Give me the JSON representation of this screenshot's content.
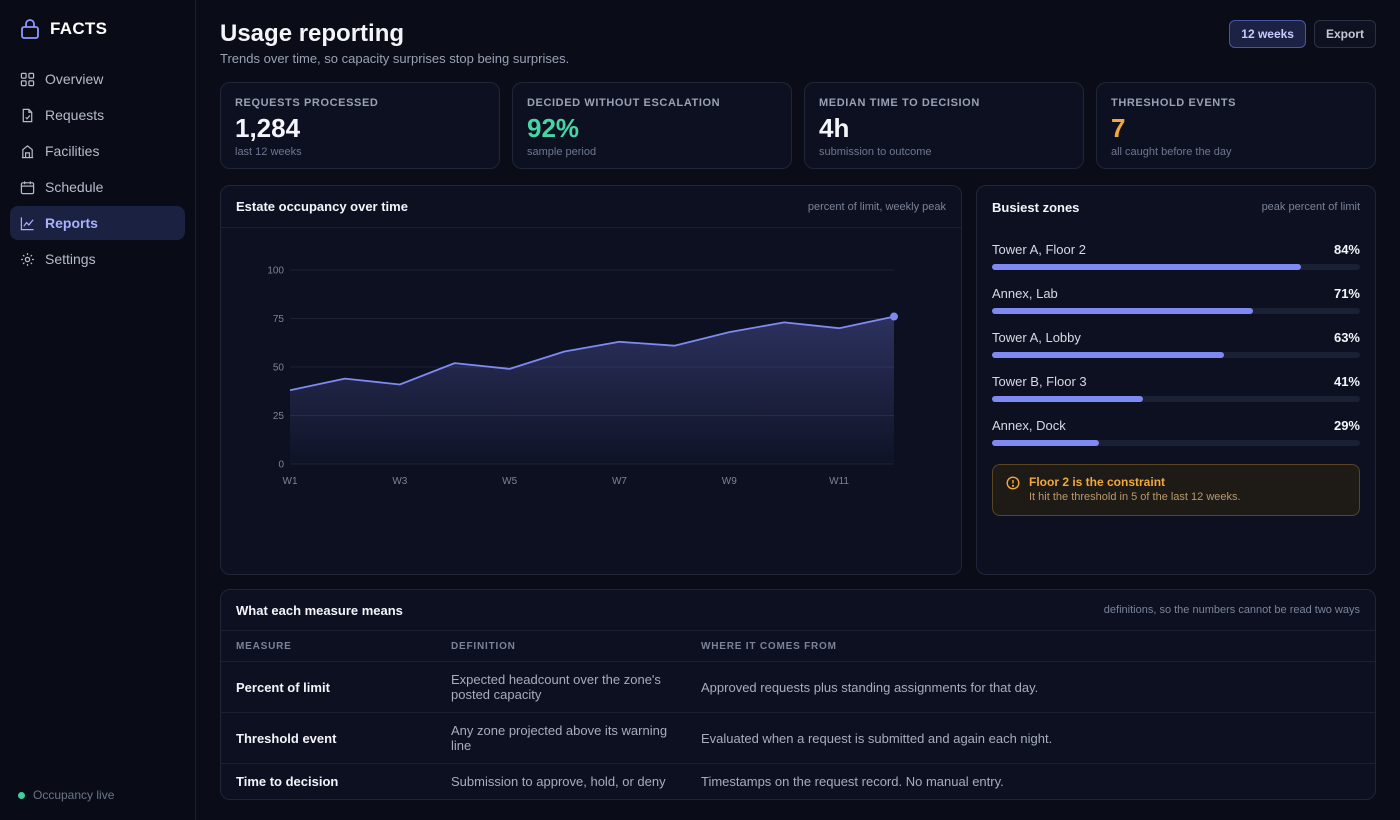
{
  "brand": {
    "name": "FACTS"
  },
  "sidebar": {
    "items": [
      {
        "label": "Overview",
        "icon": "grid-icon"
      },
      {
        "label": "Requests",
        "icon": "document-icon"
      },
      {
        "label": "Facilities",
        "icon": "building-icon"
      },
      {
        "label": "Schedule",
        "icon": "calendar-icon"
      },
      {
        "label": "Reports",
        "icon": "chart-line-icon",
        "active": true
      },
      {
        "label": "Settings",
        "icon": "gear-icon"
      }
    ],
    "status": "Occupancy live"
  },
  "header": {
    "title": "Usage reporting",
    "subtitle": "Trends over time, so capacity surprises stop being surprises.",
    "range_button": "12 weeks",
    "export_button": "Export"
  },
  "stats": [
    {
      "label": "REQUESTS PROCESSED",
      "value": "1,284",
      "note": "last 12 weeks",
      "tone": "default"
    },
    {
      "label": "DECIDED WITHOUT ESCALATION",
      "value": "92%",
      "note": "sample period",
      "tone": "green"
    },
    {
      "label": "MEDIAN TIME TO DECISION",
      "value": "4h",
      "note": "submission to outcome",
      "tone": "default"
    },
    {
      "label": "THRESHOLD EVENTS",
      "value": "7",
      "note": "all caught before the day",
      "tone": "amber"
    }
  ],
  "chart_card": {
    "title": "Estate occupancy over time",
    "hint": "percent of limit, weekly peak"
  },
  "chart_data": {
    "type": "area",
    "x": [
      "W1",
      "W2",
      "W3",
      "W4",
      "W5",
      "W6",
      "W7",
      "W8",
      "W9",
      "W10",
      "W11",
      "W12"
    ],
    "x_tick_labels": [
      "W1",
      "W3",
      "W5",
      "W7",
      "W9",
      "W11"
    ],
    "values": [
      38,
      44,
      41,
      52,
      49,
      58,
      63,
      61,
      68,
      73,
      70,
      76
    ],
    "ylim": [
      0,
      100
    ],
    "y_ticks": [
      0,
      25,
      50,
      75,
      100
    ],
    "grid": true,
    "color": "#7f89f2"
  },
  "zones_card": {
    "title": "Busiest zones",
    "hint": "peak percent of limit",
    "zones": [
      {
        "name": "Tower A, Floor 2",
        "pct_label": "84%",
        "value": 84
      },
      {
        "name": "Annex, Lab",
        "pct_label": "71%",
        "value": 71
      },
      {
        "name": "Tower A, Lobby",
        "pct_label": "63%",
        "value": 63
      },
      {
        "name": "Tower B, Floor 3",
        "pct_label": "41%",
        "value": 41
      },
      {
        "name": "Annex, Dock",
        "pct_label": "29%",
        "value": 29
      }
    ],
    "alert": {
      "title": "Floor 2 is the constraint",
      "body": "It hit the threshold in 5 of the last 12 weeks."
    }
  },
  "defs_card": {
    "title": "What each measure means",
    "hint": "definitions, so the numbers cannot be read two ways",
    "columns": [
      "MEASURE",
      "DEFINITION",
      "WHERE IT COMES FROM"
    ],
    "rows": [
      {
        "measure": "Percent of limit",
        "definition": "Expected headcount over the zone's posted capacity",
        "source": "Approved requests plus standing assignments for that day."
      },
      {
        "measure": "Threshold event",
        "definition": "Any zone projected above its warning line",
        "source": "Evaluated when a request is submitted and again each night."
      },
      {
        "measure": "Time to decision",
        "definition": "Submission to approve, hold, or deny",
        "source": "Timestamps on the request record. No manual entry."
      }
    ]
  }
}
